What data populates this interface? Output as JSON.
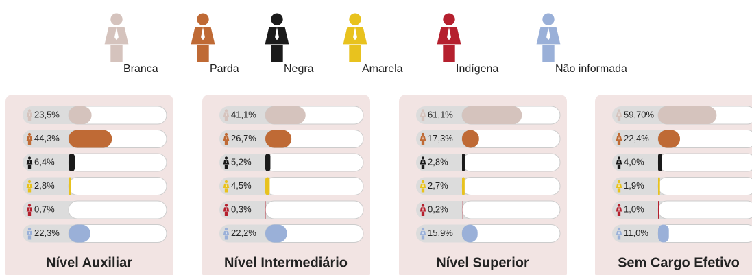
{
  "legend": {
    "series": [
      {
        "name": "Branca",
        "color": "#d5c3bd"
      },
      {
        "name": "Parda",
        "color": "#bf6a35"
      },
      {
        "name": "Negra",
        "color": "#1a1a1a"
      },
      {
        "name": "Amarela",
        "color": "#e8c21e"
      },
      {
        "name": "Indígena",
        "color": "#b5202e"
      },
      {
        "name": "Não informada",
        "color": "#9ab0d8"
      }
    ]
  },
  "chart_data": [
    {
      "type": "bar",
      "title": "Nível Auxiliar",
      "xlim": [
        0,
        100
      ],
      "values": [
        23.5,
        44.3,
        6.4,
        2.8,
        0.7,
        22.3
      ],
      "value_labels": [
        "23,5%",
        "44,3%",
        "6,4%",
        "2,8%",
        "0,7%",
        "22,3%"
      ]
    },
    {
      "type": "bar",
      "title": "Nível Intermediário",
      "xlim": [
        0,
        100
      ],
      "values": [
        41.1,
        26.7,
        5.2,
        4.5,
        0.3,
        22.2
      ],
      "value_labels": [
        "41,1%",
        "26,7%",
        "5,2%",
        "4,5%",
        "0,3%",
        "22,2%"
      ]
    },
    {
      "type": "bar",
      "title": "Nível Superior",
      "xlim": [
        0,
        100
      ],
      "values": [
        61.1,
        17.3,
        2.8,
        2.7,
        0.2,
        15.9
      ],
      "value_labels": [
        "61,1%",
        "17,3%",
        "2,8%",
        "2,7%",
        "0,2%",
        "15,9%"
      ]
    },
    {
      "type": "bar",
      "title": "Sem Cargo Efetivo",
      "xlim": [
        0,
        100
      ],
      "values": [
        59.7,
        22.4,
        4.0,
        1.9,
        1.0,
        11.0
      ],
      "value_labels": [
        "59,70%",
        "22,4%",
        "4,0%",
        "1,9%",
        "1,0%",
        "11,0%"
      ]
    }
  ]
}
